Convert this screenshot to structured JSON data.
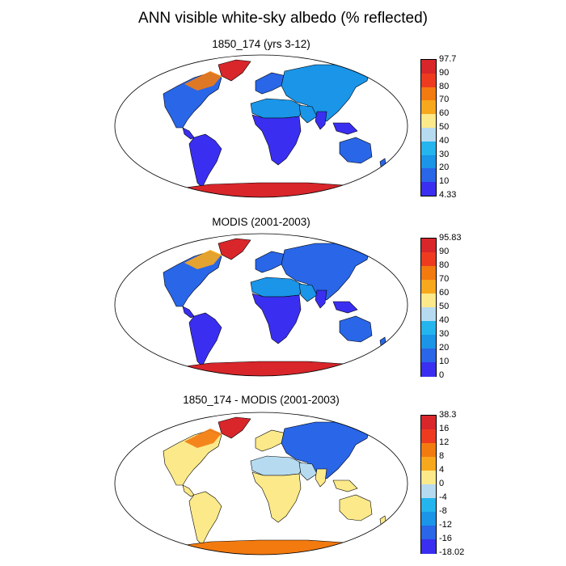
{
  "title": "ANN visible white-sky albedo (% reflected)",
  "panels": [
    {
      "title": "1850_174 (yrs 3-12)",
      "colorbar": {
        "labels": [
          "97.7",
          "90",
          "80",
          "70",
          "60",
          "50",
          "40",
          "30",
          "20",
          "10",
          "4.33"
        ],
        "colors": [
          "#d8262b",
          "#ee3b20",
          "#f37a0f",
          "#f8a81c",
          "#fce98a",
          "#b6dbf0",
          "#24b5ee",
          "#1a95e8",
          "#2966e8",
          "#3a2ff0"
        ]
      },
      "fields": {
        "ocean": "#ffffff",
        "tropics": "#3a2ff0",
        "midlat": "#2966e8",
        "boreal": "#1a95e8",
        "desert": "#1a95e8",
        "ice": "#d8262b",
        "arctic": "#f37a0f",
        "greenland": "#d8262b"
      }
    },
    {
      "title": "MODIS (2001-2003)",
      "colorbar": {
        "labels": [
          "95.83",
          "90",
          "80",
          "70",
          "60",
          "50",
          "40",
          "30",
          "20",
          "10",
          "0"
        ],
        "colors": [
          "#d8262b",
          "#ee3b20",
          "#f37a0f",
          "#f8a81c",
          "#fce98a",
          "#b6dbf0",
          "#24b5ee",
          "#1a95e8",
          "#2966e8",
          "#3a2ff0"
        ]
      },
      "fields": {
        "ocean": "#ffffff",
        "tropics": "#3a2ff0",
        "midlat": "#2966e8",
        "boreal": "#2966e8",
        "desert": "#1a95e8",
        "ice": "#d8262b",
        "arctic": "#f8a81c",
        "greenland": "#d8262b"
      }
    },
    {
      "title": "1850_174 - MODIS (2001-2003)",
      "colorbar": {
        "labels": [
          "38.3",
          "16",
          "12",
          "8",
          "4",
          "0",
          "-4",
          "-8",
          "-12",
          "-16",
          "-18.02"
        ],
        "colors": [
          "#d8262b",
          "#ee3b20",
          "#f37a0f",
          "#f8a81c",
          "#fce98a",
          "#b6dbf0",
          "#24b5ee",
          "#1a95e8",
          "#2966e8",
          "#3a2ff0"
        ]
      },
      "fields": {
        "ocean": "#ffffff",
        "tropics": "#fce98a",
        "midlat": "#fce98a",
        "boreal": "#2966e8",
        "desert": "#b6dbf0",
        "ice": "#f37a0f",
        "arctic": "#f37a0f",
        "greenland": "#d8262b"
      }
    }
  ]
}
